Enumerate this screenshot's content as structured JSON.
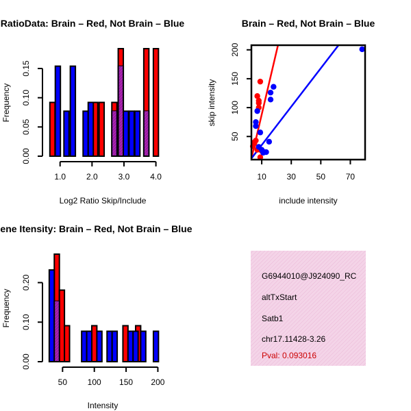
{
  "chart_data": [
    {
      "type": "bar",
      "id": "ratio_hist",
      "title": "RatioData: Brain – Red, Not Brain – Blue",
      "xlabel": "Log2 Ratio Skip/Include",
      "ylabel": "Frequency",
      "xlim": [
        0.62,
        4.18
      ],
      "ylim": [
        0,
        0.184
      ],
      "xticks": [
        1.0,
        2.0,
        3.0,
        4.0
      ],
      "xtick_labels": [
        "1.0",
        "2.0",
        "3.0",
        "4.0"
      ],
      "yticks": [
        0,
        0.05,
        0.1,
        0.15
      ],
      "ytick_labels": [
        "0.00",
        "0.05",
        "0.10",
        "0.15"
      ],
      "series": [
        {
          "name": "Brain",
          "color": "#ff0000",
          "bars": [
            {
              "left": 0.68,
              "right": 0.84,
              "value": 0.092
            },
            {
              "left": 2.02,
              "right": 2.18,
              "value": 0.092
            },
            {
              "left": 2.22,
              "right": 2.38,
              "value": 0.092
            },
            {
              "left": 2.62,
              "right": 2.78,
              "value": 0.092
            },
            {
              "left": 2.82,
              "right": 2.98,
              "value": 0.184
            },
            {
              "left": 3.62,
              "right": 3.78,
              "value": 0.184
            },
            {
              "left": 3.92,
              "right": 4.08,
              "value": 0.184
            }
          ]
        },
        {
          "name": "Not Brain",
          "color": "#0000ff",
          "bars": [
            {
              "left": 0.85,
              "right": 1.01,
              "value": 0.154
            },
            {
              "left": 1.12,
              "right": 1.28,
              "value": 0.077
            },
            {
              "left": 1.32,
              "right": 1.48,
              "value": 0.154
            },
            {
              "left": 1.72,
              "right": 1.88,
              "value": 0.077
            },
            {
              "left": 1.88,
              "right": 2.04,
              "value": 0.092
            },
            {
              "left": 2.62,
              "right": 2.78,
              "value": 0.077
            },
            {
              "left": 2.82,
              "right": 2.98,
              "value": 0.154
            },
            {
              "left": 2.98,
              "right": 3.14,
              "value": 0.077
            },
            {
              "left": 3.16,
              "right": 3.32,
              "value": 0.077
            },
            {
              "left": 3.34,
              "right": 3.5,
              "value": 0.077
            },
            {
              "left": 3.62,
              "right": 3.78,
              "value": 0.077
            }
          ]
        }
      ]
    },
    {
      "type": "scatter",
      "id": "intensity_scatter",
      "title": "Brain – Red, Not Brain – Blue",
      "xlabel": "include intensity",
      "ylabel": "skip intensity",
      "xlim": [
        3,
        80
      ],
      "ylim": [
        10,
        208
      ],
      "xticks": [
        10,
        30,
        50,
        70
      ],
      "xtick_labels": [
        "10",
        "30",
        "50",
        "70"
      ],
      "yticks": [
        50,
        100,
        150,
        200
      ],
      "ytick_labels": [
        "50",
        "100",
        "150",
        "200"
      ],
      "series": [
        {
          "name": "Brain",
          "color": "#ff0000",
          "points": [
            [
              4,
              33
            ],
            [
              5,
              38
            ],
            [
              5,
              40
            ],
            [
              6,
              43
            ],
            [
              7,
              27
            ],
            [
              7,
              120
            ],
            [
              8,
              100
            ],
            [
              8,
              108
            ],
            [
              8,
              112
            ],
            [
              9,
              145
            ],
            [
              9,
              14
            ],
            [
              10,
              25
            ]
          ],
          "fit_line": [
            [
              3,
              12
            ],
            [
              21,
              208
            ]
          ]
        },
        {
          "name": "Not Brain",
          "color": "#0000ff",
          "points": [
            [
              6,
              75
            ],
            [
              6,
              68
            ],
            [
              7,
              94
            ],
            [
              8,
              32
            ],
            [
              9,
              57
            ],
            [
              10,
              27
            ],
            [
              11,
              22
            ],
            [
              12,
              23
            ],
            [
              13,
              23
            ],
            [
              15,
              41
            ],
            [
              16,
              114
            ],
            [
              16,
              126
            ],
            [
              18,
              136
            ],
            [
              78,
              201
            ]
          ],
          "fit_line": [
            [
              3,
              12
            ],
            [
              62,
              208
            ]
          ]
        }
      ]
    },
    {
      "type": "bar",
      "id": "intensity_hist",
      "title": "Gene Itensity: Brain – Red, Not Brain – Blue",
      "xlabel": "Intensity",
      "ylabel": "Frequency",
      "xlim": [
        27,
        206
      ],
      "ylim": [
        0,
        0.272
      ],
      "xticks": [
        50,
        100,
        150,
        200
      ],
      "xtick_labels": [
        "50",
        "100",
        "150",
        "200"
      ],
      "yticks": [
        0,
        0.1,
        0.2
      ],
      "ytick_labels": [
        "0.00",
        "0.10",
        "0.20"
      ],
      "series": [
        {
          "name": "Brain",
          "color": "#ff0000",
          "bars": [
            {
              "left": 37,
              "right": 45,
              "value": 0.272
            },
            {
              "left": 45,
              "right": 53,
              "value": 0.181
            },
            {
              "left": 53,
              "right": 61,
              "value": 0.091
            },
            {
              "left": 96,
              "right": 104,
              "value": 0.091
            },
            {
              "left": 145,
              "right": 153,
              "value": 0.091
            },
            {
              "left": 165,
              "right": 173,
              "value": 0.091
            }
          ]
        },
        {
          "name": "Not Brain",
          "color": "#0000ff",
          "bars": [
            {
              "left": 29,
              "right": 37,
              "value": 0.232
            },
            {
              "left": 37,
              "right": 45,
              "value": 0.153
            },
            {
              "left": 80,
              "right": 88,
              "value": 0.077
            },
            {
              "left": 88,
              "right": 96,
              "value": 0.077
            },
            {
              "left": 104,
              "right": 112,
              "value": 0.077
            },
            {
              "left": 120,
              "right": 128,
              "value": 0.077
            },
            {
              "left": 128,
              "right": 136,
              "value": 0.077
            },
            {
              "left": 153,
              "right": 161,
              "value": 0.077
            },
            {
              "left": 161,
              "right": 169,
              "value": 0.077
            },
            {
              "left": 173,
              "right": 181,
              "value": 0.077
            },
            {
              "left": 193,
              "right": 201,
              "value": 0.077
            }
          ]
        }
      ]
    }
  ],
  "info_box": {
    "lines": [
      "G6944010@J924090_RC",
      "altTxStart",
      "Satb1",
      "chr17.11428-3.26"
    ],
    "pval": "Pval: 0.093016",
    "background": "#f4d4e8",
    "pval_color": "#cc0000"
  },
  "colors": {
    "brain": "#ff0000",
    "not_brain": "#0000ff",
    "overlap": "#9a1aa0"
  }
}
